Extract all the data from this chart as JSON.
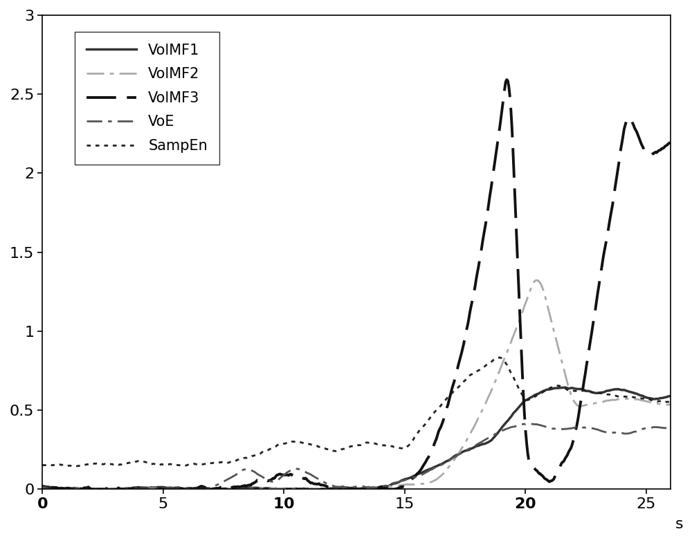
{
  "xlim": [
    0,
    26
  ],
  "ylim": [
    0,
    3
  ],
  "xticks": [
    0,
    5,
    10,
    15,
    20,
    25
  ],
  "yticks": [
    0,
    0.5,
    1,
    1.5,
    2,
    2.5,
    3
  ],
  "xlabel": "s",
  "background_color": "#ffffff",
  "legend_labels": [
    "VolMF1",
    "VolMF2",
    "VolMF3",
    "VoE",
    "SampEn"
  ],
  "line_colors": [
    "#333333",
    "#aaaaaa",
    "#111111",
    "#555555",
    "#222222"
  ],
  "line_widths": [
    2.5,
    2.0,
    2.8,
    2.0,
    2.0
  ],
  "n_points": 600
}
